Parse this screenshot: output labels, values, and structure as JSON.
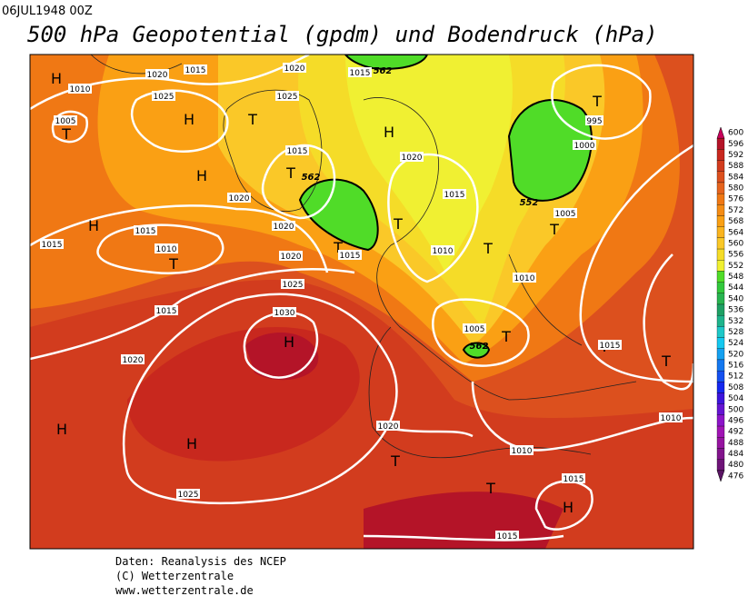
{
  "header": {
    "timestamp": "06JUL1948 00Z",
    "title": "500 hPa Geopotential (gpdm) und Bodendruck (hPa)"
  },
  "footer": [
    "Daten: Reanalysis des NCEP",
    "(C) Wetterzentrale",
    "www.wetterzentrale.de"
  ],
  "colorbar": {
    "levels": [
      600,
      596,
      592,
      588,
      584,
      580,
      576,
      572,
      568,
      564,
      560,
      556,
      552,
      548,
      544,
      540,
      536,
      532,
      528,
      524,
      520,
      516,
      512,
      508,
      504,
      500,
      496,
      492,
      488,
      484,
      480,
      476
    ],
    "colors": [
      "#c8005a",
      "#b41428",
      "#c8281e",
      "#d23c1e",
      "#dc501e",
      "#e6641e",
      "#f07814",
      "#f58c14",
      "#faa014",
      "#fab41e",
      "#fac828",
      "#f5dc28",
      "#f0f032",
      "#50dc28",
      "#32c83c",
      "#28b450",
      "#1ea064",
      "#1eb48c",
      "#1ec8c8",
      "#14c8f0",
      "#14a0f0",
      "#1478f0",
      "#1450f0",
      "#1428f0",
      "#3c14dc",
      "#6414d2",
      "#8c14c8",
      "#a014b4",
      "#9614a0",
      "#82148c",
      "#6e1478",
      "#5a1464"
    ]
  },
  "map": {
    "labels": [
      "H",
      "1010",
      "1005",
      "T",
      "1020",
      "1015",
      "1025",
      "H",
      "T",
      "1020",
      "1025",
      "1015",
      "562",
      "H",
      "1020",
      "T",
      "995",
      "1000",
      "1015",
      "T",
      "562",
      "H",
      "1020",
      "1015",
      "552",
      "1005",
      "T",
      "T",
      "H",
      "1015",
      "1020",
      "T",
      "1015",
      "1010",
      "T",
      "1015",
      "1010",
      "T",
      "1020",
      "1010",
      "1025",
      "1015",
      "1030",
      "H",
      "1005",
      "562",
      "T",
      "T",
      "1015",
      "T",
      "1020",
      "H",
      "H",
      "1020",
      "1010",
      "1010",
      "T",
      "1015",
      "T",
      "H",
      "1025",
      "1015"
    ]
  }
}
